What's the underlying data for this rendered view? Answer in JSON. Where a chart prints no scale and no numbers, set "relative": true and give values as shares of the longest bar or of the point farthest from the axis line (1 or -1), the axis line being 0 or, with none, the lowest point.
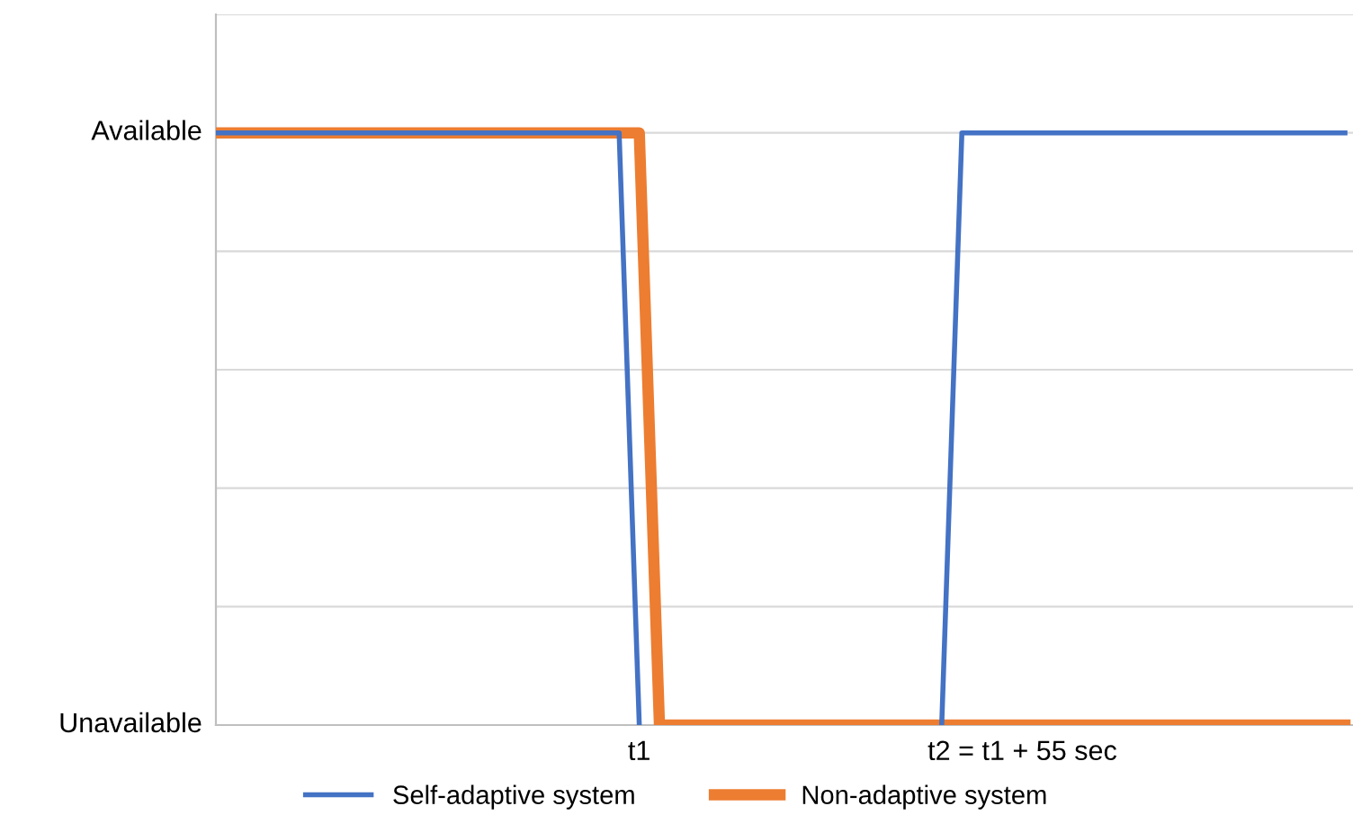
{
  "chart_data": {
    "type": "line",
    "relative": true,
    "categories": [
      null,
      null,
      null,
      null,
      null,
      null,
      null,
      null,
      null,
      null,
      null,
      null,
      null,
      null,
      null,
      null,
      null,
      null,
      null,
      null,
      null,
      "t1",
      null,
      null,
      null,
      null,
      null,
      null,
      null,
      null,
      null,
      null,
      null,
      null,
      null,
      null,
      null,
      null,
      null,
      null,
      "t2 = t1 + 55 sec",
      null,
      null,
      null,
      null,
      null,
      null,
      null,
      null,
      null,
      null,
      null,
      null,
      null,
      null,
      null,
      null
    ],
    "annotations": [
      "Available",
      "Unavailable"
    ],
    "grid": true,
    "legend": "bottom",
    "marker": "none",
    "line_style": "solid",
    "series": [
      {
        "name": "Self-adaptive system",
        "color": "#4472c4",
        "values": [
          1,
          1,
          1,
          1,
          1,
          1,
          1,
          1,
          1,
          1,
          1,
          1,
          1,
          1,
          1,
          1,
          1,
          1,
          1,
          1,
          1,
          0,
          null,
          null,
          null,
          null,
          null,
          null,
          null,
          null,
          null,
          null,
          null,
          null,
          null,
          null,
          0,
          1,
          1,
          1,
          1,
          1,
          1,
          1,
          1,
          1,
          1,
          1,
          1,
          1,
          1,
          1,
          1,
          1,
          1,
          1,
          1
        ]
      },
      {
        "name": "Non-adaptive system",
        "color": "#ed7d31",
        "values": [
          1,
          1,
          1,
          1,
          1,
          1,
          1,
          1,
          1,
          1,
          1,
          1,
          1,
          1,
          1,
          1,
          1,
          1,
          1,
          1,
          1,
          1,
          0,
          0,
          0,
          0,
          0,
          0,
          0,
          0,
          0,
          0,
          0,
          0,
          0,
          0,
          0,
          0,
          0,
          0,
          0,
          0,
          0,
          0,
          0,
          0,
          0,
          0,
          0,
          0,
          0,
          0,
          0,
          0,
          0,
          0,
          0
        ]
      }
    ]
  }
}
